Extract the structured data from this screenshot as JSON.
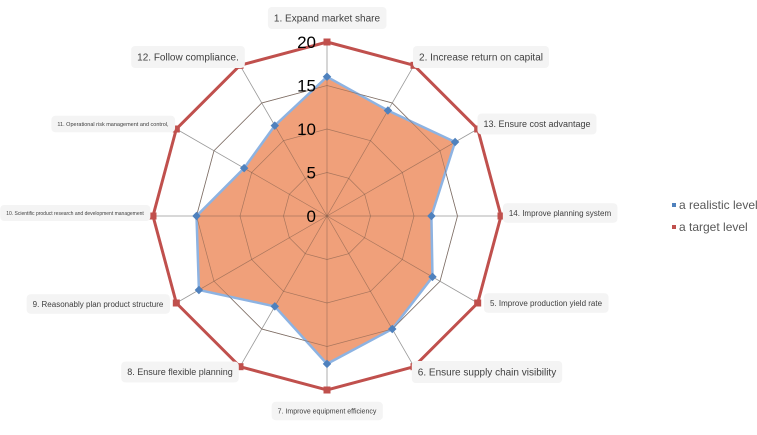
{
  "chart_data": {
    "type": "radar",
    "categories": [
      "1. Expand market share",
      "2. Increase return on capital",
      "13. Ensure cost advantage",
      "14. Improve planning system",
      "5. Improve production yield rate",
      "6. Ensure supply chain visibility",
      "7. Improve equipment efficiency",
      "8. Ensure flexible planning",
      "9. Reasonably plan product structure",
      "10. Scientific product research and development management",
      "11. Operational risk management and control,",
      "12. Follow compliance."
    ],
    "series": [
      {
        "name": "a realistic level",
        "color": "#4f81bd",
        "fill": "#f0a07a",
        "values": [
          16,
          14,
          17,
          12,
          14,
          15,
          17,
          12,
          17,
          15,
          11,
          12
        ]
      },
      {
        "name": "a target level",
        "color": "#c0504d",
        "values": [
          20,
          20,
          20,
          20,
          20,
          20,
          20,
          20,
          20,
          20,
          20,
          20
        ]
      }
    ],
    "rlim": [
      0,
      20
    ],
    "ticks": [
      "0",
      "5",
      "10",
      "15",
      "20"
    ],
    "legend": "right",
    "grid": true
  }
}
